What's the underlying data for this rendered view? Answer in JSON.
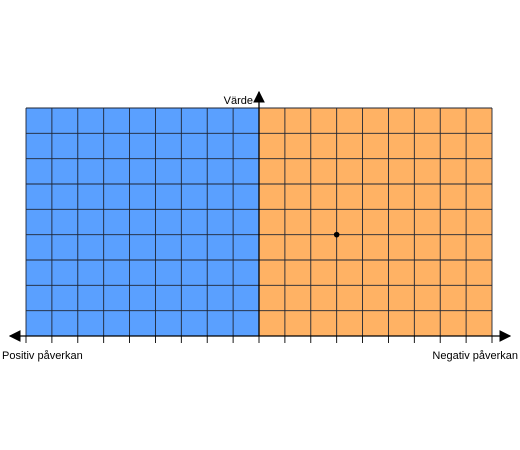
{
  "diagram": {
    "y_axis_label": "Värde",
    "x_axis_left_label": "Positiv påverkan",
    "x_axis_right_label": "Negativ påverkan",
    "grid": {
      "columns_per_side": 9,
      "rows": 9
    },
    "colors": {
      "left_region": "#5aa0ff",
      "right_region": "#ffb264",
      "grid_lines": "#1f2533",
      "axis": "#000000",
      "point": "#000000"
    },
    "point": {
      "column_from_axis": 3,
      "row_from_bottom": 4
    }
  }
}
